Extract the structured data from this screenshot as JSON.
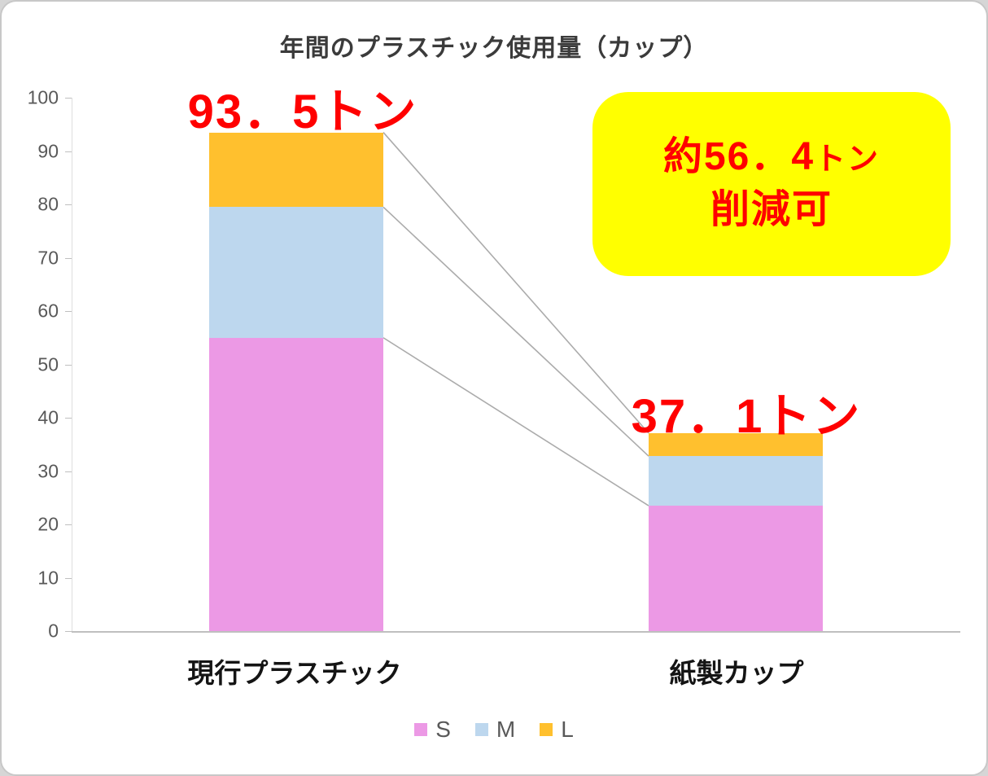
{
  "frame": {
    "background": "#ffffff",
    "border_color": "#c8c8c8",
    "outer_background": "#d6d6d6"
  },
  "chart_data": {
    "type": "bar",
    "stacked": true,
    "title": "年間のプラスチック使用量（カップ）",
    "categories": [
      "現行プラスチック",
      "紙製カップ"
    ],
    "series": [
      {
        "name": "S",
        "color": "#ec99e5",
        "values": [
          55,
          23.5
        ]
      },
      {
        "name": "M",
        "color": "#bdd7ee",
        "values": [
          24.5,
          9.3
        ]
      },
      {
        "name": "L",
        "color": "#ffc02e",
        "values": [
          14,
          4.3
        ]
      }
    ],
    "totals": [
      93.5,
      37.1
    ],
    "total_labels": [
      "93．5トン",
      "37．1トン"
    ],
    "ylim": [
      0,
      100
    ],
    "yticks": [
      0,
      10,
      20,
      30,
      40,
      50,
      60,
      70,
      80,
      90,
      100
    ],
    "grid": false,
    "legend_position": "bottom",
    "series_connector_lines": true
  },
  "annotation": {
    "value": "約56．4",
    "unit": "トン",
    "line2": "削減可",
    "background": "#ffff00",
    "text_color": "#ff0000"
  },
  "colors": {
    "connector_line": "#ababab",
    "axis_line": "#bfbfbf",
    "axis_text": "#595959",
    "total_label_color": "#ff0000",
    "category_label_color": "#141414",
    "title_color": "#3b3b3b"
  }
}
